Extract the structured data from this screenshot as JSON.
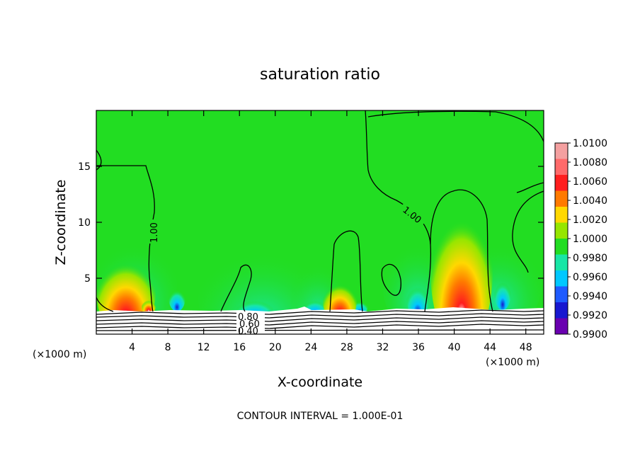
{
  "chart_data": {
    "type": "heatmap",
    "title": "saturation ratio",
    "xlabel": "X-coordinate",
    "ylabel": "Z-coordinate",
    "x_unit": "(×1000 m)",
    "y_unit": "(×1000 m)",
    "xlim": [
      0,
      50
    ],
    "ylim": [
      0,
      20
    ],
    "x_ticks": [
      4,
      8,
      12,
      16,
      20,
      24,
      28,
      32,
      36,
      40,
      44,
      48
    ],
    "y_ticks": [
      5,
      10,
      15
    ],
    "colorbar": {
      "levels": [
        "1.0100",
        "1.0080",
        "1.0060",
        "1.0040",
        "1.0020",
        "1.0000",
        "0.9980",
        "0.9960",
        "0.9940",
        "0.9920",
        "0.9900"
      ],
      "colors": [
        "#f4a0a0",
        "#ff6a6a",
        "#ff1e1e",
        "#ff7a00",
        "#ffd800",
        "#96e600",
        "#22dd22",
        "#18e6a6",
        "#00c8ff",
        "#1f5bff",
        "#1818d0",
        "#6a00b0"
      ]
    },
    "contour_labels": [
      "1.00",
      "1.00",
      "0.80",
      "0.60",
      "0.40"
    ],
    "contour_interval_text": "CONTOUR INTERVAL = 1.000E-01"
  }
}
